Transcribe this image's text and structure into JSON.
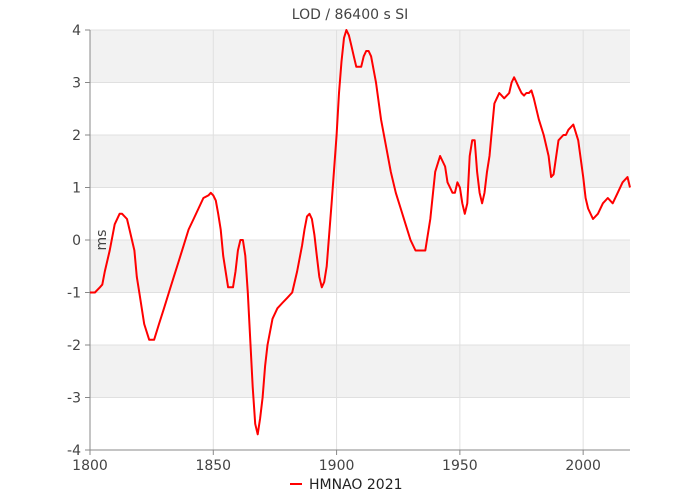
{
  "chart_data": {
    "type": "line",
    "title": "LOD / 86400 s SI",
    "xlabel": "",
    "ylabel": "ms",
    "xlim": [
      1800,
      2019
    ],
    "ylim": [
      -4,
      4
    ],
    "xticks": [
      1800,
      1850,
      1900,
      1950,
      2000
    ],
    "yticks": [
      -4,
      -3,
      -2,
      -1,
      0,
      1,
      2,
      3,
      4
    ],
    "grid": true,
    "banded_background": true,
    "legend_position": "bottom-center",
    "colors": {
      "line": "#ff0000",
      "band": "#f2f2f2",
      "grid": "#e0e0e0",
      "axis": "#888888"
    },
    "series": [
      {
        "name": "HMNAO 2021",
        "x": [
          1800,
          1802,
          1804,
          1805,
          1806,
          1808,
          1810,
          1812,
          1813,
          1815,
          1816,
          1818,
          1819,
          1820,
          1822,
          1824,
          1826,
          1828,
          1830,
          1832,
          1834,
          1836,
          1838,
          1840,
          1842,
          1844,
          1846,
          1848,
          1849,
          1850,
          1851,
          1852,
          1853,
          1854,
          1856,
          1858,
          1859,
          1860,
          1861,
          1862,
          1863,
          1864,
          1866,
          1867,
          1868,
          1869,
          1870,
          1871,
          1872,
          1874,
          1876,
          1878,
          1880,
          1882,
          1884,
          1886,
          1887,
          1888,
          1889,
          1890,
          1891,
          1892,
          1893,
          1894,
          1895,
          1896,
          1898,
          1900,
          1901,
          1902,
          1903,
          1904,
          1905,
          1906,
          1907,
          1908,
          1909,
          1910,
          1911,
          1912,
          1913,
          1914,
          1916,
          1918,
          1920,
          1922,
          1924,
          1926,
          1928,
          1930,
          1932,
          1934,
          1936,
          1938,
          1940,
          1942,
          1944,
          1945,
          1946,
          1947,
          1948,
          1949,
          1950,
          1951,
          1952,
          1953,
          1954,
          1955,
          1956,
          1957,
          1958,
          1959,
          1960,
          1961,
          1962,
          1963,
          1964,
          1965,
          1966,
          1968,
          1970,
          1971,
          1972,
          1973,
          1974,
          1975,
          1976,
          1977,
          1978,
          1979,
          1980,
          1982,
          1984,
          1986,
          1987,
          1988,
          1990,
          1992,
          1993,
          1994,
          1996,
          1998,
          2000,
          2001,
          2002,
          2004,
          2006,
          2008,
          2010,
          2012,
          2014,
          2016,
          2018,
          2019
        ],
        "values": [
          -1.0,
          -1.0,
          -0.9,
          -0.85,
          -0.6,
          -0.2,
          0.3,
          0.5,
          0.5,
          0.4,
          0.2,
          -0.2,
          -0.7,
          -1.0,
          -1.6,
          -1.9,
          -1.9,
          -1.6,
          -1.3,
          -1.0,
          -0.7,
          -0.4,
          -0.1,
          0.2,
          0.4,
          0.6,
          0.8,
          0.85,
          0.9,
          0.85,
          0.75,
          0.5,
          0.2,
          -0.3,
          -0.9,
          -0.9,
          -0.6,
          -0.2,
          0.0,
          0.0,
          -0.3,
          -1.0,
          -2.8,
          -3.5,
          -3.7,
          -3.4,
          -3.0,
          -2.4,
          -2.0,
          -1.5,
          -1.3,
          -1.2,
          -1.1,
          -1.0,
          -0.6,
          -0.1,
          0.2,
          0.45,
          0.5,
          0.4,
          0.1,
          -0.3,
          -0.7,
          -0.9,
          -0.8,
          -0.5,
          0.7,
          2.0,
          2.8,
          3.4,
          3.85,
          4.0,
          3.9,
          3.7,
          3.5,
          3.3,
          3.3,
          3.3,
          3.5,
          3.6,
          3.6,
          3.5,
          3.0,
          2.3,
          1.8,
          1.3,
          0.9,
          0.6,
          0.3,
          0.0,
          -0.2,
          -0.2,
          -0.2,
          0.4,
          1.3,
          1.6,
          1.4,
          1.1,
          1.0,
          0.9,
          0.9,
          1.1,
          1.0,
          0.7,
          0.5,
          0.7,
          1.6,
          1.9,
          1.9,
          1.3,
          0.9,
          0.7,
          0.9,
          1.3,
          1.6,
          2.1,
          2.6,
          2.7,
          2.8,
          2.7,
          2.8,
          3.0,
          3.1,
          3.0,
          2.9,
          2.8,
          2.75,
          2.8,
          2.8,
          2.85,
          2.7,
          2.3,
          2.0,
          1.6,
          1.2,
          1.25,
          1.9,
          2.0,
          2.0,
          2.1,
          2.2,
          1.9,
          1.2,
          0.8,
          0.6,
          0.4,
          0.5,
          0.7,
          0.8,
          0.7,
          0.9,
          1.1,
          1.2,
          1.0
        ]
      }
    ]
  }
}
